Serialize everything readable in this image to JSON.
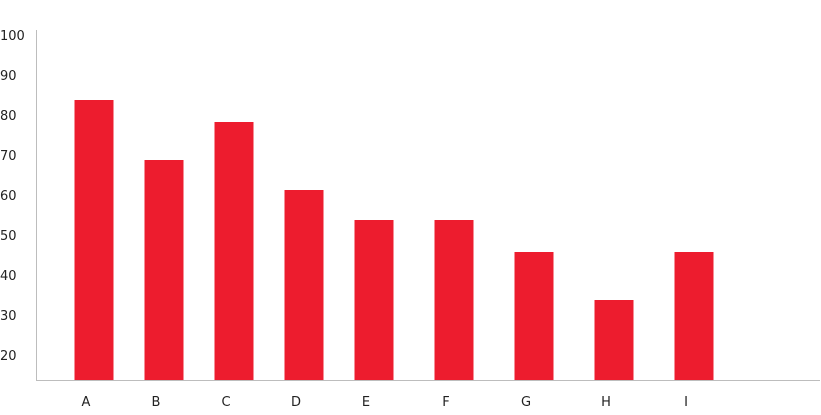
{
  "chart_data": {
    "type": "bar",
    "categories": [
      "A",
      "B",
      "C",
      "D",
      "E",
      "F",
      "G",
      "H",
      "I"
    ],
    "values": [
      84,
      69,
      78.5,
      61.5,
      54,
      54,
      46,
      34,
      46
    ],
    "yticks": [
      20,
      30,
      40,
      50,
      60,
      70,
      80,
      90,
      100
    ],
    "ylim": [
      12,
      100
    ],
    "grid": false,
    "legend": "none",
    "bar_color": "#ed1c2e",
    "axis_color": "#bdbdbd",
    "text_color": "#222222"
  }
}
